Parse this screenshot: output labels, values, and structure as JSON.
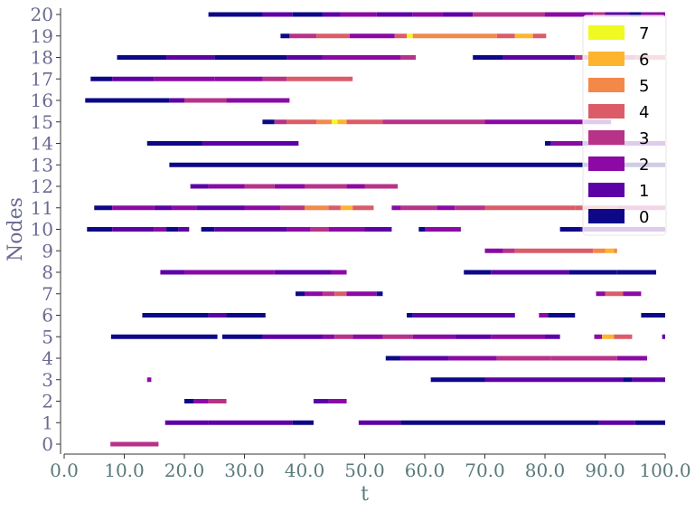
{
  "chart_data": {
    "type": "timeline",
    "title": "",
    "xlabel": "t",
    "ylabel": "Nodes",
    "xlim": [
      0,
      100
    ],
    "ylim": [
      -0.5,
      20.3
    ],
    "x_ticks": [
      "0.0",
      "10.0",
      "20.0",
      "30.0",
      "40.0",
      "50.0",
      "60.0",
      "70.0",
      "80.0",
      "90.0",
      "100.0"
    ],
    "y_ticks": [
      "0",
      "1",
      "2",
      "3",
      "4",
      "5",
      "6",
      "7",
      "8",
      "9",
      "10",
      "11",
      "12",
      "13",
      "14",
      "15",
      "16",
      "17",
      "18",
      "19",
      "20"
    ],
    "grid": false,
    "colormap": "plasma",
    "legend": {
      "placement": "upper-right",
      "entries": [
        {
          "label": "7",
          "color": "#f0f921"
        },
        {
          "label": "6",
          "color": "#fdb42f"
        },
        {
          "label": "5",
          "color": "#f48849"
        },
        {
          "label": "4",
          "color": "#db5c68"
        },
        {
          "label": "3",
          "color": "#b83289"
        },
        {
          "label": "2",
          "color": "#8b0aa5"
        },
        {
          "label": "1",
          "color": "#5c01a6"
        },
        {
          "label": "0",
          "color": "#0d0887"
        }
      ]
    },
    "segments": [
      {
        "node": 0,
        "x0": 7.7,
        "x1": 15.7,
        "v": 3
      },
      {
        "node": 1,
        "x0": 16.8,
        "x1": 24,
        "v": 1
      },
      {
        "node": 1,
        "x0": 24,
        "x1": 38,
        "v": 1
      },
      {
        "node": 1,
        "x0": 38,
        "x1": 41.5,
        "v": 0
      },
      {
        "node": 1,
        "x0": 49,
        "x1": 56,
        "v": 1
      },
      {
        "node": 1,
        "x0": 56,
        "x1": 89,
        "v": 0
      },
      {
        "node": 1,
        "x0": 89,
        "x1": 95,
        "v": 1
      },
      {
        "node": 1,
        "x0": 95,
        "x1": 100,
        "v": 0
      },
      {
        "node": 2,
        "x0": 20,
        "x1": 21.5,
        "v": 0
      },
      {
        "node": 2,
        "x0": 21.5,
        "x1": 24,
        "v": 2
      },
      {
        "node": 2,
        "x0": 24,
        "x1": 27,
        "v": 3
      },
      {
        "node": 2,
        "x0": 41.5,
        "x1": 44,
        "v": 1
      },
      {
        "node": 2,
        "x0": 44,
        "x1": 47,
        "v": 2
      },
      {
        "node": 3,
        "x0": 13.8,
        "x1": 14.5,
        "v": 2
      },
      {
        "node": 3,
        "x0": 61,
        "x1": 70,
        "v": 0
      },
      {
        "node": 3,
        "x0": 70,
        "x1": 93,
        "v": 1
      },
      {
        "node": 3,
        "x0": 93,
        "x1": 94.5,
        "v": 0
      },
      {
        "node": 3,
        "x0": 94.5,
        "x1": 100,
        "v": 1
      },
      {
        "node": 4,
        "x0": 53.5,
        "x1": 56,
        "v": 0
      },
      {
        "node": 4,
        "x0": 56,
        "x1": 64,
        "v": 1
      },
      {
        "node": 4,
        "x0": 64,
        "x1": 72,
        "v": 2
      },
      {
        "node": 4,
        "x0": 72,
        "x1": 81,
        "v": 3
      },
      {
        "node": 4,
        "x0": 81,
        "x1": 92,
        "v": 3
      },
      {
        "node": 4,
        "x0": 92,
        "x1": 97,
        "v": 2
      },
      {
        "node": 5,
        "x0": 7.8,
        "x1": 25.5,
        "v": 0
      },
      {
        "node": 5,
        "x0": 26.3,
        "x1": 33,
        "v": 0
      },
      {
        "node": 5,
        "x0": 33,
        "x1": 43,
        "v": 1
      },
      {
        "node": 5,
        "x0": 43,
        "x1": 45,
        "v": 2
      },
      {
        "node": 5,
        "x0": 45,
        "x1": 48,
        "v": 3
      },
      {
        "node": 5,
        "x0": 48,
        "x1": 53,
        "v": 2
      },
      {
        "node": 5,
        "x0": 53,
        "x1": 58,
        "v": 3
      },
      {
        "node": 5,
        "x0": 58,
        "x1": 65,
        "v": 2
      },
      {
        "node": 5,
        "x0": 65,
        "x1": 71,
        "v": 1
      },
      {
        "node": 5,
        "x0": 71,
        "x1": 80,
        "v": 2
      },
      {
        "node": 5,
        "x0": 80,
        "x1": 82.5,
        "v": 1
      },
      {
        "node": 5,
        "x0": 88.2,
        "x1": 89.5,
        "v": 2
      },
      {
        "node": 5,
        "x0": 89.5,
        "x1": 91.5,
        "v": 6
      },
      {
        "node": 5,
        "x0": 91.5,
        "x1": 94.5,
        "v": 4
      },
      {
        "node": 5,
        "x0": 99.5,
        "x1": 100,
        "v": 1
      },
      {
        "node": 6,
        "x0": 13,
        "x1": 24,
        "v": 0
      },
      {
        "node": 6,
        "x0": 24,
        "x1": 27,
        "v": 1
      },
      {
        "node": 6,
        "x0": 27,
        "x1": 33.5,
        "v": 0
      },
      {
        "node": 6,
        "x0": 57,
        "x1": 58,
        "v": 0
      },
      {
        "node": 6,
        "x0": 58,
        "x1": 75,
        "v": 1
      },
      {
        "node": 6,
        "x0": 79,
        "x1": 80.5,
        "v": 2
      },
      {
        "node": 6,
        "x0": 80.5,
        "x1": 85,
        "v": 0
      },
      {
        "node": 6,
        "x0": 96,
        "x1": 100,
        "v": 0
      },
      {
        "node": 7,
        "x0": 38.5,
        "x1": 40,
        "v": 0
      },
      {
        "node": 7,
        "x0": 40,
        "x1": 43,
        "v": 2
      },
      {
        "node": 7,
        "x0": 43,
        "x1": 45,
        "v": 3
      },
      {
        "node": 7,
        "x0": 45,
        "x1": 47,
        "v": 4
      },
      {
        "node": 7,
        "x0": 47,
        "x1": 52,
        "v": 2
      },
      {
        "node": 7,
        "x0": 52,
        "x1": 53,
        "v": 0
      },
      {
        "node": 7,
        "x0": 88.5,
        "x1": 90,
        "v": 2
      },
      {
        "node": 7,
        "x0": 90,
        "x1": 93,
        "v": 4
      },
      {
        "node": 7,
        "x0": 93,
        "x1": 96,
        "v": 2
      },
      {
        "node": 8,
        "x0": 16,
        "x1": 20,
        "v": 1
      },
      {
        "node": 8,
        "x0": 20,
        "x1": 35,
        "v": 2
      },
      {
        "node": 8,
        "x0": 35,
        "x1": 44.5,
        "v": 1
      },
      {
        "node": 8,
        "x0": 44.5,
        "x1": 47,
        "v": 2
      },
      {
        "node": 8,
        "x0": 66.5,
        "x1": 71,
        "v": 0
      },
      {
        "node": 8,
        "x0": 71,
        "x1": 84,
        "v": 1
      },
      {
        "node": 8,
        "x0": 84,
        "x1": 92,
        "v": 0
      },
      {
        "node": 8,
        "x0": 92,
        "x1": 98.5,
        "v": 0
      },
      {
        "node": 9,
        "x0": 70,
        "x1": 73,
        "v": 2
      },
      {
        "node": 9,
        "x0": 73,
        "x1": 75,
        "v": 3
      },
      {
        "node": 9,
        "x0": 75,
        "x1": 88,
        "v": 4
      },
      {
        "node": 9,
        "x0": 88,
        "x1": 90,
        "v": 5
      },
      {
        "node": 9,
        "x0": 90,
        "x1": 91.5,
        "v": 6
      },
      {
        "node": 9,
        "x0": 91.5,
        "x1": 92,
        "v": 5
      },
      {
        "node": 10,
        "x0": 3.8,
        "x1": 8,
        "v": 0
      },
      {
        "node": 10,
        "x0": 8,
        "x1": 15,
        "v": 1
      },
      {
        "node": 10,
        "x0": 15,
        "x1": 17,
        "v": 2
      },
      {
        "node": 10,
        "x0": 17,
        "x1": 19,
        "v": 0
      },
      {
        "node": 10,
        "x0": 19,
        "x1": 20.8,
        "v": 1
      },
      {
        "node": 10,
        "x0": 22.8,
        "x1": 25,
        "v": 0
      },
      {
        "node": 10,
        "x0": 25,
        "x1": 37,
        "v": 1
      },
      {
        "node": 10,
        "x0": 37,
        "x1": 41,
        "v": 2
      },
      {
        "node": 10,
        "x0": 41,
        "x1": 44,
        "v": 3
      },
      {
        "node": 10,
        "x0": 44,
        "x1": 50,
        "v": 2
      },
      {
        "node": 10,
        "x0": 50,
        "x1": 54.5,
        "v": 1
      },
      {
        "node": 10,
        "x0": 59,
        "x1": 60,
        "v": 0
      },
      {
        "node": 10,
        "x0": 60,
        "x1": 66,
        "v": 2
      },
      {
        "node": 10,
        "x0": 82.5,
        "x1": 86,
        "v": 0
      },
      {
        "node": 10,
        "x0": 86,
        "x1": 100,
        "v": 1
      },
      {
        "node": 11,
        "x0": 5,
        "x1": 8,
        "v": 0
      },
      {
        "node": 11,
        "x0": 8,
        "x1": 15,
        "v": 2
      },
      {
        "node": 11,
        "x0": 15,
        "x1": 18,
        "v": 1
      },
      {
        "node": 11,
        "x0": 18,
        "x1": 22,
        "v": 2
      },
      {
        "node": 11,
        "x0": 22,
        "x1": 30,
        "v": 1
      },
      {
        "node": 11,
        "x0": 30,
        "x1": 36,
        "v": 2
      },
      {
        "node": 11,
        "x0": 36,
        "x1": 40,
        "v": 3
      },
      {
        "node": 11,
        "x0": 40,
        "x1": 44,
        "v": 5
      },
      {
        "node": 11,
        "x0": 44,
        "x1": 46,
        "v": 4
      },
      {
        "node": 11,
        "x0": 46,
        "x1": 48,
        "v": 6
      },
      {
        "node": 11,
        "x0": 48,
        "x1": 51.5,
        "v": 4
      },
      {
        "node": 11,
        "x0": 54.5,
        "x1": 56,
        "v": 2
      },
      {
        "node": 11,
        "x0": 56,
        "x1": 62,
        "v": 3
      },
      {
        "node": 11,
        "x0": 62,
        "x1": 65,
        "v": 2
      },
      {
        "node": 11,
        "x0": 65,
        "x1": 70,
        "v": 3
      },
      {
        "node": 11,
        "x0": 70,
        "x1": 85,
        "v": 4
      },
      {
        "node": 11,
        "x0": 85,
        "x1": 92,
        "v": 4
      },
      {
        "node": 11,
        "x0": 92,
        "x1": 100,
        "v": 3
      },
      {
        "node": 12,
        "x0": 21,
        "x1": 24,
        "v": 1
      },
      {
        "node": 12,
        "x0": 24,
        "x1": 30,
        "v": 2
      },
      {
        "node": 12,
        "x0": 30,
        "x1": 35,
        "v": 3
      },
      {
        "node": 12,
        "x0": 35,
        "x1": 40,
        "v": 2
      },
      {
        "node": 12,
        "x0": 40,
        "x1": 47,
        "v": 3
      },
      {
        "node": 12,
        "x0": 47,
        "x1": 50,
        "v": 2
      },
      {
        "node": 12,
        "x0": 50,
        "x1": 55.5,
        "v": 3
      },
      {
        "node": 13,
        "x0": 17.5,
        "x1": 100,
        "v": 0
      },
      {
        "node": 14,
        "x0": 13.8,
        "x1": 23,
        "v": 0
      },
      {
        "node": 14,
        "x0": 23,
        "x1": 39,
        "v": 1
      },
      {
        "node": 14,
        "x0": 80,
        "x1": 81,
        "v": 0
      },
      {
        "node": 14,
        "x0": 81,
        "x1": 86,
        "v": 2
      },
      {
        "node": 14,
        "x0": 86,
        "x1": 100,
        "v": 1
      },
      {
        "node": 15,
        "x0": 33,
        "x1": 35,
        "v": 0
      },
      {
        "node": 15,
        "x0": 35,
        "x1": 37,
        "v": 3
      },
      {
        "node": 15,
        "x0": 37,
        "x1": 42,
        "v": 4
      },
      {
        "node": 15,
        "x0": 42,
        "x1": 44.5,
        "v": 5
      },
      {
        "node": 15,
        "x0": 44.5,
        "x1": 45.5,
        "v": 7
      },
      {
        "node": 15,
        "x0": 45.5,
        "x1": 47,
        "v": 6
      },
      {
        "node": 15,
        "x0": 47,
        "x1": 53,
        "v": 4
      },
      {
        "node": 15,
        "x0": 53,
        "x1": 60,
        "v": 3
      },
      {
        "node": 15,
        "x0": 60,
        "x1": 70,
        "v": 3
      },
      {
        "node": 15,
        "x0": 70,
        "x1": 80,
        "v": 2
      },
      {
        "node": 15,
        "x0": 80,
        "x1": 87,
        "v": 2
      },
      {
        "node": 15,
        "x0": 87,
        "x1": 91,
        "v": 1
      },
      {
        "node": 16,
        "x0": 3.5,
        "x1": 17.5,
        "v": 0
      },
      {
        "node": 16,
        "x0": 17.5,
        "x1": 20,
        "v": 1
      },
      {
        "node": 16,
        "x0": 20,
        "x1": 27,
        "v": 3
      },
      {
        "node": 16,
        "x0": 27,
        "x1": 37.5,
        "v": 2
      },
      {
        "node": 17,
        "x0": 4.4,
        "x1": 8,
        "v": 0
      },
      {
        "node": 17,
        "x0": 8,
        "x1": 15,
        "v": 1
      },
      {
        "node": 17,
        "x0": 15,
        "x1": 25,
        "v": 2
      },
      {
        "node": 17,
        "x0": 25,
        "x1": 33,
        "v": 2
      },
      {
        "node": 17,
        "x0": 33,
        "x1": 37,
        "v": 3
      },
      {
        "node": 17,
        "x0": 37,
        "x1": 48,
        "v": 4
      },
      {
        "node": 18,
        "x0": 8.8,
        "x1": 17,
        "v": 0
      },
      {
        "node": 18,
        "x0": 17,
        "x1": 25,
        "v": 1
      },
      {
        "node": 18,
        "x0": 25,
        "x1": 37,
        "v": 0
      },
      {
        "node": 18,
        "x0": 37,
        "x1": 43,
        "v": 1
      },
      {
        "node": 18,
        "x0": 43,
        "x1": 56,
        "v": 2
      },
      {
        "node": 18,
        "x0": 56,
        "x1": 58.5,
        "v": 3
      },
      {
        "node": 18,
        "x0": 68,
        "x1": 73,
        "v": 0
      },
      {
        "node": 18,
        "x0": 73,
        "x1": 85,
        "v": 1
      },
      {
        "node": 18,
        "x0": 85,
        "x1": 95,
        "v": 3
      },
      {
        "node": 18,
        "x0": 95,
        "x1": 100,
        "v": 4
      },
      {
        "node": 19,
        "x0": 36,
        "x1": 37.5,
        "v": 0
      },
      {
        "node": 19,
        "x0": 37.5,
        "x1": 42,
        "v": 3
      },
      {
        "node": 19,
        "x0": 42,
        "x1": 47.5,
        "v": 4
      },
      {
        "node": 19,
        "x0": 47.5,
        "x1": 55,
        "v": 2
      },
      {
        "node": 19,
        "x0": 55,
        "x1": 57,
        "v": 4
      },
      {
        "node": 19,
        "x0": 57,
        "x1": 58,
        "v": 7
      },
      {
        "node": 19,
        "x0": 58,
        "x1": 72,
        "v": 5
      },
      {
        "node": 19,
        "x0": 72,
        "x1": 75,
        "v": 4
      },
      {
        "node": 19,
        "x0": 75,
        "x1": 78,
        "v": 6
      },
      {
        "node": 19,
        "x0": 78,
        "x1": 80.2,
        "v": 4
      },
      {
        "node": 20,
        "x0": 24,
        "x1": 33,
        "v": 0
      },
      {
        "node": 20,
        "x0": 33,
        "x1": 38,
        "v": 1
      },
      {
        "node": 20,
        "x0": 38,
        "x1": 43,
        "v": 0
      },
      {
        "node": 20,
        "x0": 43,
        "x1": 46,
        "v": 1
      },
      {
        "node": 20,
        "x0": 46,
        "x1": 52,
        "v": 2
      },
      {
        "node": 20,
        "x0": 52,
        "x1": 58,
        "v": 1
      },
      {
        "node": 20,
        "x0": 58,
        "x1": 63,
        "v": 2
      },
      {
        "node": 20,
        "x0": 63,
        "x1": 68,
        "v": 1
      },
      {
        "node": 20,
        "x0": 68,
        "x1": 80,
        "v": 3
      },
      {
        "node": 20,
        "x0": 80,
        "x1": 88,
        "v": 2
      },
      {
        "node": 20,
        "x0": 88,
        "x1": 90,
        "v": 3
      },
      {
        "node": 20,
        "x0": 90,
        "x1": 94,
        "v": 1
      },
      {
        "node": 20,
        "x0": 94,
        "x1": 96,
        "v": 0
      },
      {
        "node": 20,
        "x0": 96,
        "x1": 100,
        "v": 2
      }
    ]
  }
}
